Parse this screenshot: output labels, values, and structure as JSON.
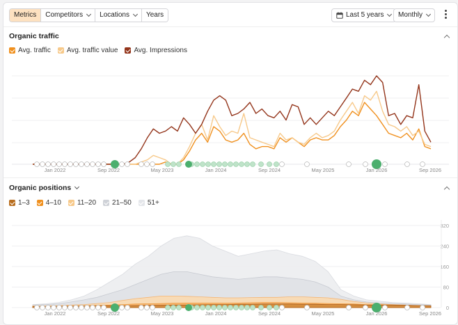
{
  "toolbar": {
    "tabs": [
      {
        "label": "Metrics",
        "active": true
      },
      {
        "label": "Competitors",
        "dropdown": true
      },
      {
        "label": "Locations",
        "dropdown": true
      },
      {
        "label": "Years",
        "dropdown": false
      }
    ],
    "date_range": "Last 5 years",
    "granularity": "Monthly"
  },
  "colors": {
    "avg_traffic": "#f0901e",
    "avg_traffic_value": "#f7c98a",
    "avg_impressions": "#93341a",
    "marker_green": "#4caf6e"
  },
  "organic_traffic": {
    "title": "Organic traffic",
    "legend": [
      {
        "label": "Avg. traffic",
        "color": "#f0901e"
      },
      {
        "label": "Avg. traffic value",
        "color": "#f7c98a"
      },
      {
        "label": "Avg. Impressions",
        "color": "#93341a"
      }
    ]
  },
  "organic_positions": {
    "title": "Organic positions",
    "legend": [
      {
        "label": "1–3",
        "color": "#b86d1e"
      },
      {
        "label": "4–10",
        "color": "#f0901e"
      },
      {
        "label": "11–20",
        "color": "#f7c98a"
      },
      {
        "label": "21–50",
        "color": "#cfd2d8"
      },
      {
        "label": "51+",
        "color": "#e4e6ea"
      }
    ]
  },
  "chart_data": [
    {
      "type": "line",
      "x_tick_labels": [
        "Jan 2022",
        "Sep 2022",
        "May 2023",
        "Jan 2024",
        "Sep 2024",
        "May 2025",
        "Jan 2026",
        "Sep 2026"
      ],
      "series": [
        {
          "name": "Avg. Impressions",
          "values": [
            0,
            0,
            0,
            0,
            0,
            0,
            0,
            0,
            0,
            0,
            0,
            0,
            0,
            0,
            0,
            0,
            1,
            3,
            7,
            12,
            16,
            14,
            15,
            17,
            15,
            21,
            18,
            14,
            18,
            24,
            29,
            31,
            29,
            22,
            23,
            25,
            28,
            23,
            25,
            22,
            21,
            24,
            20,
            27,
            26,
            18,
            21,
            18,
            21,
            24,
            22,
            26,
            30,
            34,
            33,
            38,
            36,
            40,
            37,
            22,
            23,
            18,
            22,
            21,
            36,
            15,
            10
          ],
          "color": "#93341a"
        },
        {
          "name": "Avg. traffic value",
          "values": [
            0,
            0,
            0,
            0,
            0,
            0,
            0,
            0,
            0,
            0,
            0,
            0,
            0,
            0,
            0,
            0,
            0,
            0,
            1,
            2,
            4,
            3,
            2,
            0,
            0,
            3,
            8,
            14,
            18,
            11,
            22,
            17,
            13,
            15,
            14,
            23,
            12,
            11,
            10,
            9,
            8,
            14,
            11,
            12,
            10,
            9,
            12,
            14,
            12,
            13,
            15,
            20,
            24,
            28,
            23,
            31,
            29,
            33,
            24,
            18,
            17,
            15,
            17,
            13,
            15,
            9,
            8
          ],
          "color": "#f7c98a"
        },
        {
          "name": "Avg. traffic",
          "values": [
            0,
            0,
            0,
            0,
            0,
            0,
            0,
            0,
            0,
            0,
            0,
            0,
            0,
            0,
            0,
            0,
            0,
            0,
            0,
            0,
            0,
            0,
            1,
            0,
            0,
            2,
            6,
            11,
            14,
            10,
            17,
            15,
            11,
            10,
            11,
            14,
            9,
            7,
            8,
            8,
            7,
            12,
            10,
            12,
            10,
            8,
            11,
            12,
            11,
            11,
            13,
            17,
            20,
            24,
            22,
            28,
            25,
            22,
            18,
            14,
            13,
            12,
            14,
            11,
            16,
            8,
            7
          ],
          "color": "#f0901e"
        }
      ]
    },
    {
      "type": "area",
      "x_tick_labels": [
        "Jan 2022",
        "Sep 2022",
        "May 2023",
        "Jan 2024",
        "Sep 2024",
        "May 2025",
        "Jan 2026",
        "Sep 2026"
      ],
      "y_tick_labels": [
        "0",
        "80",
        "160",
        "240",
        "320"
      ],
      "ylim": [
        0,
        320
      ],
      "series": [
        {
          "name": "1–3",
          "values": [
            4,
            4,
            5,
            5,
            6,
            6,
            7,
            7,
            8,
            9,
            9,
            10,
            10,
            11,
            12,
            12,
            13,
            13,
            14,
            14,
            14,
            13,
            13,
            12,
            12,
            11,
            10,
            10,
            10,
            9,
            8,
            7
          ]
        },
        {
          "name": "4–10",
          "values": [
            5,
            5,
            6,
            7,
            8,
            9,
            10,
            12,
            14,
            15,
            16,
            17,
            18,
            18,
            18,
            17,
            18,
            19,
            20,
            20,
            19,
            18,
            17,
            16,
            15,
            14,
            12,
            11,
            10,
            9,
            8,
            7
          ]
        },
        {
          "name": "11–20",
          "values": [
            6,
            7,
            8,
            10,
            12,
            16,
            20,
            28,
            35,
            40,
            45,
            45,
            44,
            42,
            40,
            38,
            38,
            39,
            40,
            40,
            42,
            42,
            40,
            38,
            32,
            24,
            18,
            14,
            12,
            10,
            8,
            7
          ]
        },
        {
          "name": "21–50",
          "values": [
            10,
            12,
            15,
            22,
            30,
            40,
            55,
            70,
            90,
            110,
            130,
            140,
            140,
            130,
            120,
            115,
            110,
            115,
            120,
            120,
            115,
            110,
            100,
            80,
            45,
            30,
            22,
            18,
            16,
            14,
            12,
            10
          ]
        },
        {
          "name": "51+",
          "values": [
            12,
            15,
            20,
            30,
            45,
            70,
            100,
            130,
            170,
            200,
            240,
            270,
            280,
            270,
            240,
            220,
            200,
            210,
            220,
            225,
            210,
            200,
            180,
            140,
            70,
            45,
            30,
            25,
            20,
            18,
            15,
            12
          ]
        }
      ]
    }
  ]
}
